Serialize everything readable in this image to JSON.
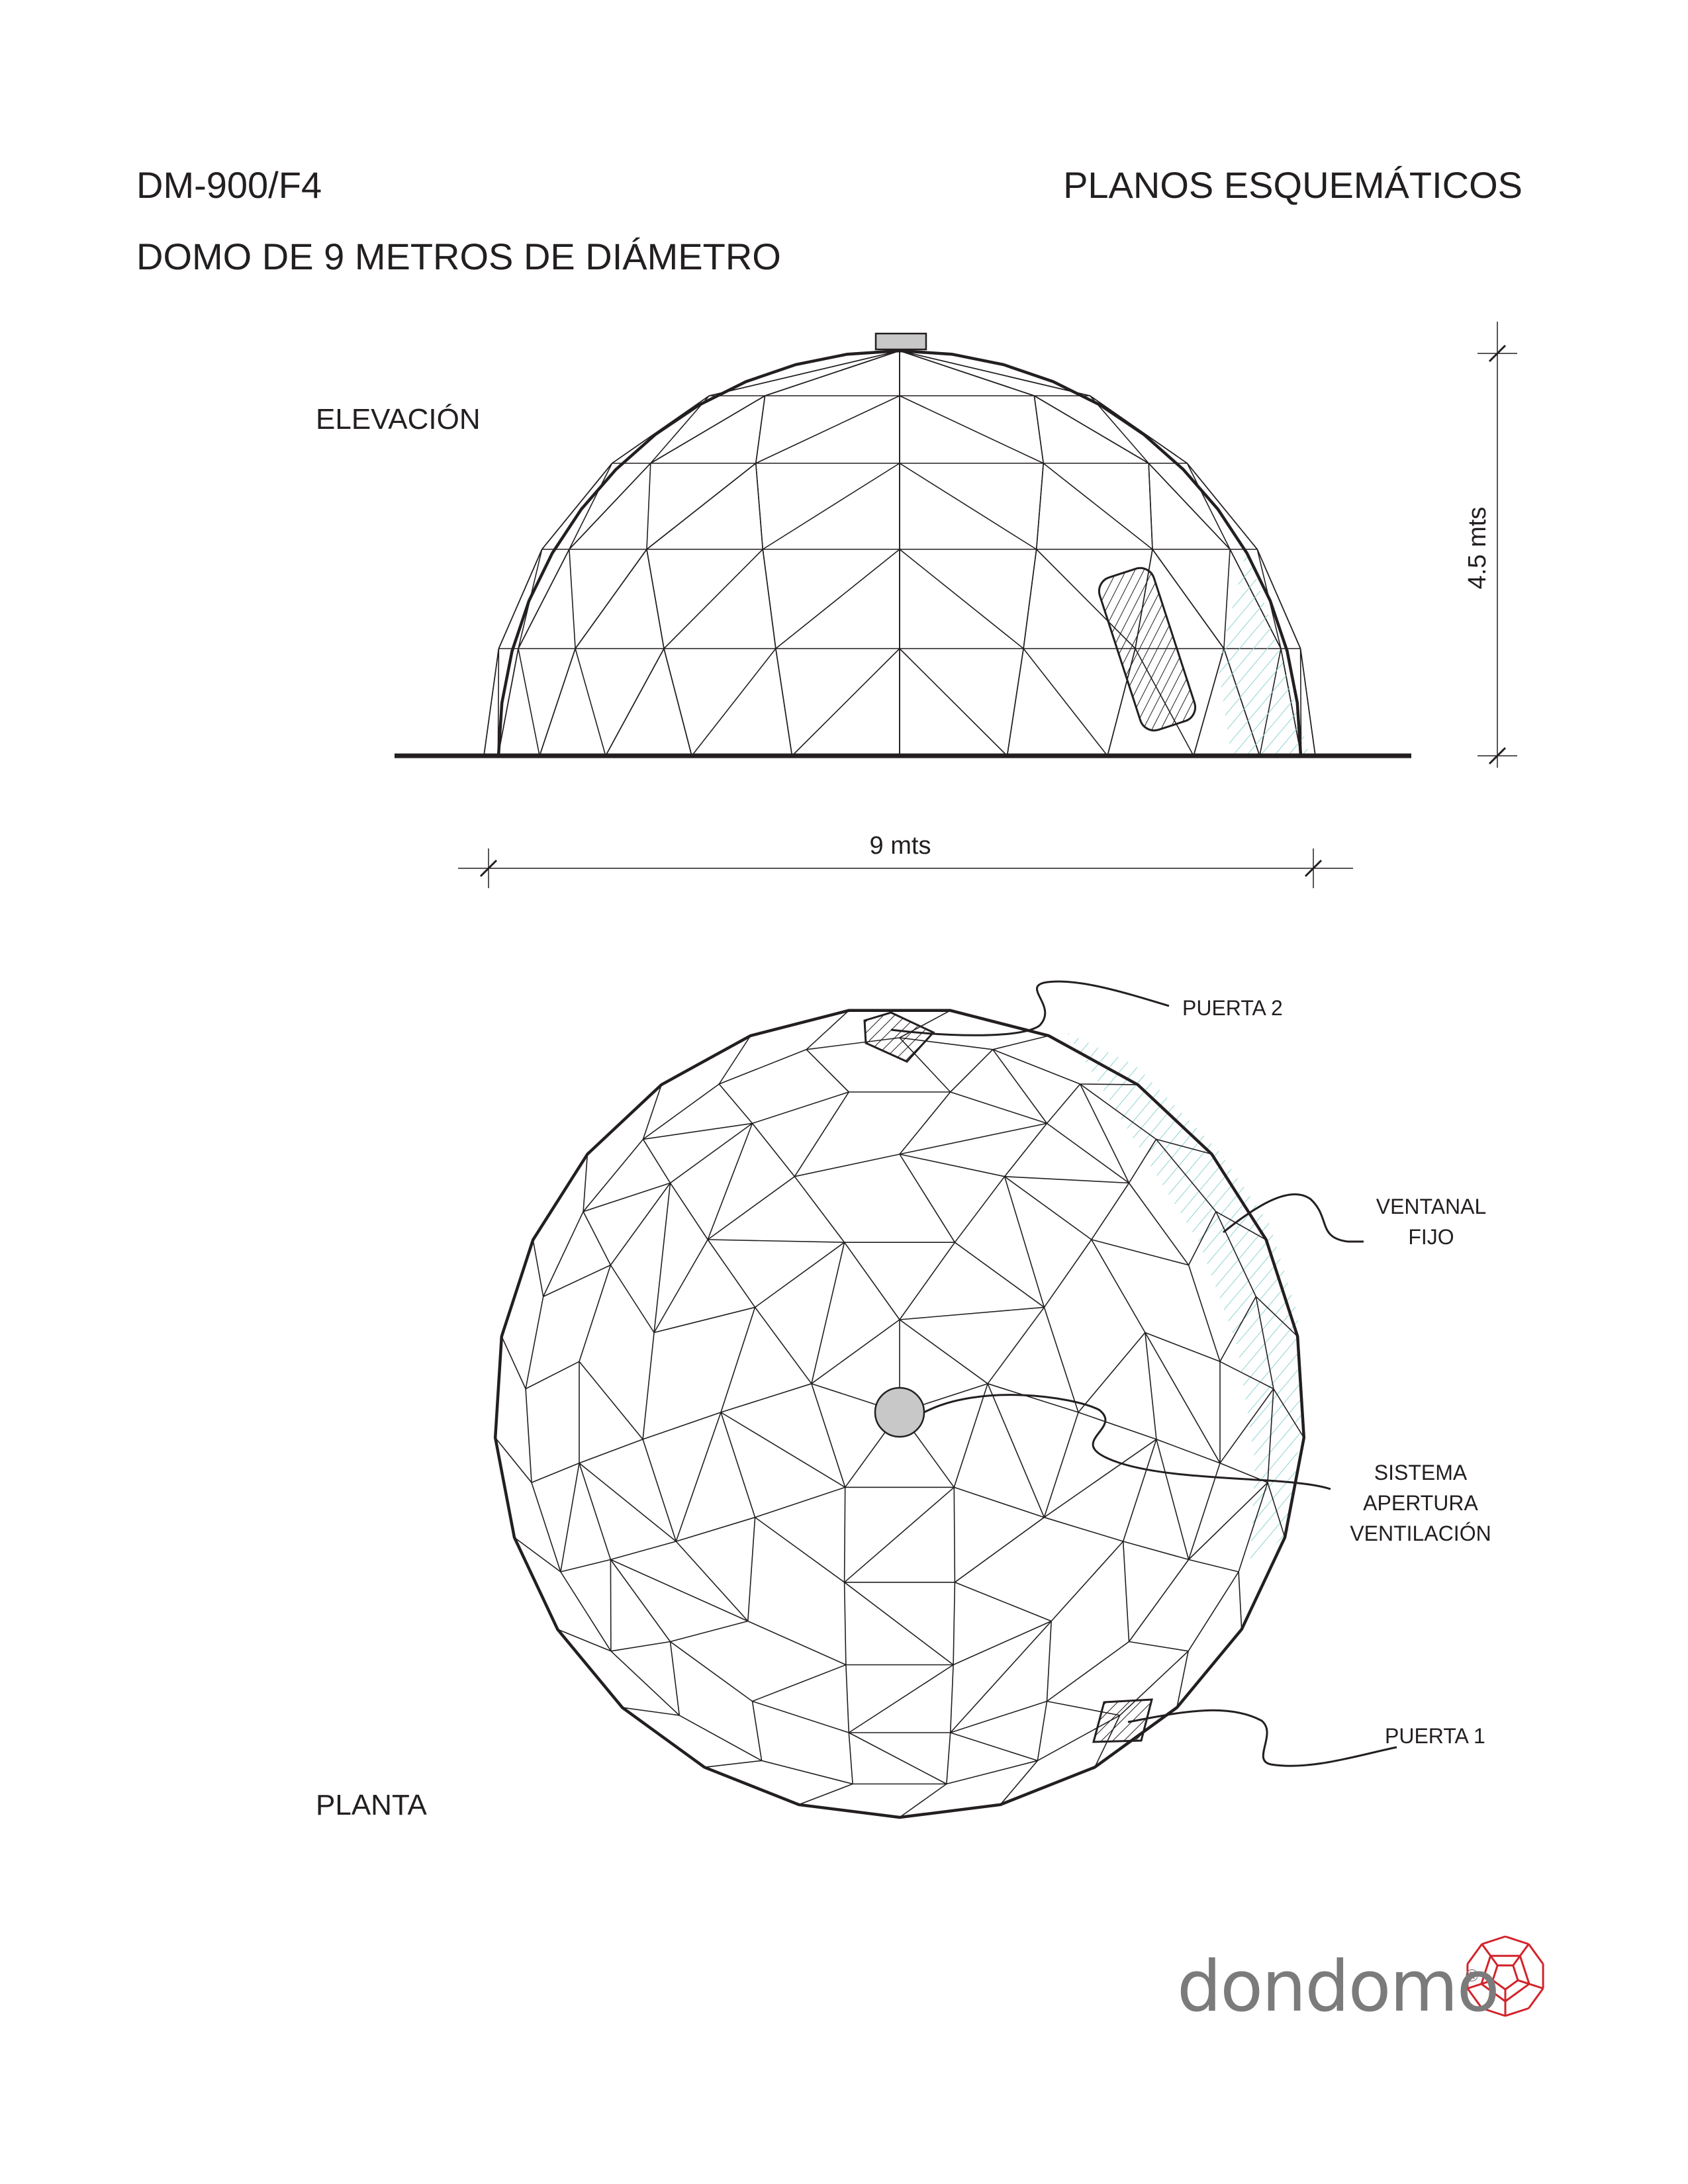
{
  "header": {
    "model": "DM-900/F4",
    "sheet_title": "PLANOS ESQUEMÁTICOS",
    "description": "DOMO DE 9 METROS DE DIÁMETRO"
  },
  "elevation": {
    "label": "ELEVACIÓN",
    "height_label": "4.5 mts",
    "width_label": "9 mts"
  },
  "plan": {
    "label": "PLANTA",
    "callouts": {
      "door2": "PUERTA 2",
      "window_line1": "VENTANAL",
      "window_line2": "FIJO",
      "vent_line1": "SISTEMA",
      "vent_line2": "APERTURA",
      "vent_line3": "VENTILACIÓN",
      "door1": "PUERTA 1"
    }
  },
  "brand": {
    "name": "dondomo",
    "registered": "®"
  },
  "colors": {
    "line": "#231f20",
    "glass_hatch": "#8fd3d1",
    "vent": "#c8c8c8",
    "logo_red": "#d2232a",
    "brand_gray": "#7b7b7b"
  }
}
